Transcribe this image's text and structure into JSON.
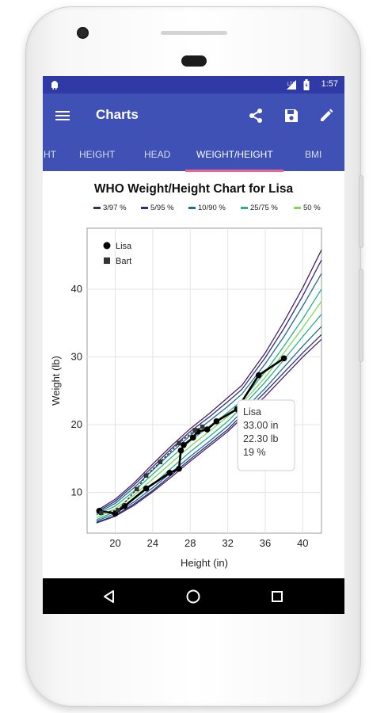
{
  "status_bar": {
    "time": "1:57"
  },
  "app_bar": {
    "title": "Charts",
    "icons": [
      "menu-icon",
      "share-icon",
      "save-icon",
      "edit-icon"
    ]
  },
  "tabs": [
    {
      "label": "HT",
      "active": false
    },
    {
      "label": "HEIGHT",
      "active": false
    },
    {
      "label": "HEAD",
      "active": false
    },
    {
      "label": "WEIGHT/HEIGHT",
      "active": true
    },
    {
      "label": "BMI",
      "active": false
    }
  ],
  "colors": {
    "primary": "#3f51b5",
    "status_bar": "#2f3aa6",
    "tab_indicator": "#f06292"
  },
  "chart_data": {
    "type": "line",
    "title": "WHO Weight/Height Chart for Lisa",
    "xlabel": "Height (in)",
    "ylabel": "Weight (lb)",
    "xlim": [
      17,
      42
    ],
    "ylim": [
      4,
      49
    ],
    "xticks": [
      "20",
      "24",
      "28",
      "32",
      "36",
      "40"
    ],
    "yticks": [
      "10",
      "20",
      "30",
      "40"
    ],
    "grid": true,
    "percentile_legend": [
      {
        "label": "3/97 %",
        "color": "#4a235a"
      },
      {
        "label": "5/95 %",
        "color": "#2c2c8c"
      },
      {
        "label": "10/90 %",
        "color": "#1f6f8b"
      },
      {
        "label": "25/75 %",
        "color": "#26b08e"
      },
      {
        "label": "50 %",
        "color": "#7ed957"
      }
    ],
    "percentile_curves": [
      {
        "label": "3/97 %",
        "color": "#4a235a",
        "x": [
          18,
          20,
          22,
          24,
          26,
          28,
          30,
          32,
          33.5,
          36,
          38,
          40,
          42
        ],
        "low": [
          5.5,
          6.5,
          8.1,
          10.1,
          12.3,
          14.6,
          16.8,
          19.0,
          21.0,
          24.2,
          27.1,
          30.0,
          32.6
        ],
        "high": [
          7.3,
          9.0,
          11.4,
          14.2,
          16.9,
          19.4,
          21.6,
          24.0,
          25.8,
          30.6,
          35.2,
          40.2,
          45.8
        ]
      },
      {
        "label": "5/95 %",
        "color": "#2c2c8c",
        "x": [
          18,
          20,
          22,
          24,
          26,
          28,
          30,
          32,
          33.5,
          36,
          38,
          40,
          42
        ],
        "low": [
          5.6,
          6.6,
          8.3,
          10.3,
          12.6,
          14.9,
          17.1,
          19.3,
          21.4,
          24.8,
          27.7,
          30.6,
          33.3
        ],
        "high": [
          7.1,
          8.7,
          11.1,
          13.8,
          16.5,
          19.0,
          21.1,
          23.4,
          25.2,
          29.9,
          34.2,
          39.0,
          44.3
        ]
      },
      {
        "label": "10/90 %",
        "color": "#1f6f8b",
        "x": [
          18,
          20,
          22,
          24,
          26,
          28,
          30,
          32,
          33.5,
          36,
          38,
          40,
          42
        ],
        "low": [
          5.8,
          6.9,
          8.6,
          10.7,
          13.0,
          15.3,
          17.5,
          19.8,
          21.9,
          25.4,
          28.5,
          31.6,
          34.5
        ],
        "high": [
          6.9,
          8.4,
          10.7,
          13.3,
          15.9,
          18.4,
          20.5,
          22.7,
          24.5,
          29.0,
          33.0,
          37.5,
          42.3
        ]
      },
      {
        "label": "25/75 %",
        "color": "#26b08e",
        "x": [
          18,
          20,
          22,
          24,
          26,
          28,
          30,
          32,
          33.5,
          36,
          38,
          40,
          42
        ],
        "low": [
          6.0,
          7.2,
          9.0,
          11.2,
          13.6,
          16.0,
          18.2,
          20.5,
          22.6,
          26.3,
          29.6,
          33.0,
          36.3
        ],
        "high": [
          6.7,
          8.0,
          10.2,
          12.7,
          15.2,
          17.6,
          19.7,
          21.8,
          23.6,
          27.8,
          31.6,
          35.6,
          40.0
        ]
      },
      {
        "label": "50 %",
        "color": "#7ed957",
        "x": [
          18,
          20,
          22,
          24,
          26,
          28,
          30,
          32,
          33.5,
          36,
          38,
          40,
          42
        ],
        "mid": [
          6.3,
          7.6,
          9.6,
          12.0,
          14.4,
          16.8,
          19.0,
          21.2,
          23.1,
          27.0,
          30.6,
          34.3,
          38.2
        ]
      }
    ],
    "series": [
      {
        "name": "Lisa",
        "marker": "circle",
        "color": "#000000",
        "x": [
          18.3,
          20,
          21,
          23.3,
          25.8,
          26.8,
          27,
          27.3,
          28.3,
          28.8,
          29.8,
          30.8,
          33,
          35.3,
          38
        ],
        "y": [
          7.3,
          6.9,
          8.0,
          10.6,
          12.9,
          13.5,
          16.2,
          17.0,
          18.1,
          19.0,
          19.3,
          20.5,
          22.3,
          27.3,
          29.8
        ]
      },
      {
        "name": "Bart",
        "marker": "square",
        "color": "#333333",
        "x": [
          18.5,
          20.3,
          22.3,
          23.3,
          24.8,
          26.8,
          28.5,
          29.3
        ],
        "y": [
          7.0,
          7.4,
          10.5,
          12.5,
          14.5,
          17.3,
          19.2,
          19.7
        ]
      }
    ],
    "tooltip": {
      "lines": [
        "Lisa",
        "33.00 in",
        "22.30 lb",
        "19 %"
      ]
    }
  }
}
